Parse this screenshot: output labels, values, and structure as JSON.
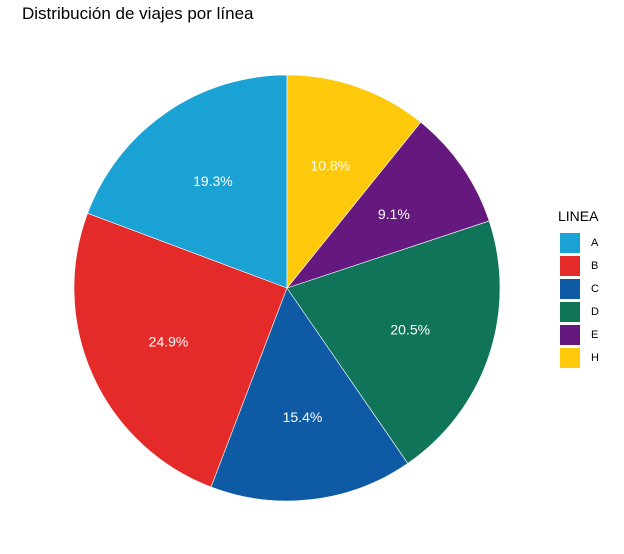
{
  "chart_data": {
    "type": "pie",
    "title": "Distribución de viajes por línea",
    "legend_title": "LINEA",
    "legend_position": "right",
    "categories": [
      "A",
      "B",
      "C",
      "D",
      "E",
      "H"
    ],
    "values": [
      19.3,
      24.9,
      15.4,
      20.5,
      9.1,
      10.8
    ],
    "labels": [
      "19.3%",
      "24.9%",
      "15.4%",
      "20.5%",
      "9.1%",
      "10.8%"
    ],
    "colors": [
      "#1aa2d4",
      "#e52b2a",
      "#0f5aa5",
      "#107458",
      "#65197e",
      "#fec80b"
    ],
    "direction": "counterclockwise",
    "start": "top"
  }
}
